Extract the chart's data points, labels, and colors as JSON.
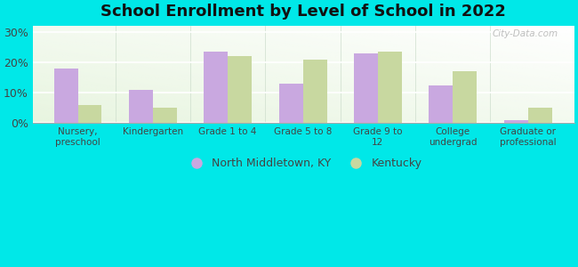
{
  "title": "School Enrollment by Level of School in 2022",
  "categories": [
    "Nursery,\npreschool",
    "Kindergarten",
    "Grade 1 to 4",
    "Grade 5 to 8",
    "Grade 9 to\n12",
    "College\nundergrad",
    "Graduate or\nprofessional"
  ],
  "north_middletown": [
    18.0,
    11.0,
    23.5,
    13.0,
    23.0,
    12.5,
    1.0
  ],
  "kentucky": [
    6.0,
    5.0,
    22.0,
    21.0,
    23.5,
    17.0,
    5.0
  ],
  "color_nm": "#c9a8e0",
  "color_ky": "#c8d8a0",
  "background_outer": "#00e8e8",
  "yticks": [
    0,
    10,
    20,
    30
  ],
  "ylim": [
    0,
    32
  ],
  "legend_nm": "North Middletown, KY",
  "legend_ky": "Kentucky",
  "watermark": "City-Data.com",
  "bar_width": 0.32
}
